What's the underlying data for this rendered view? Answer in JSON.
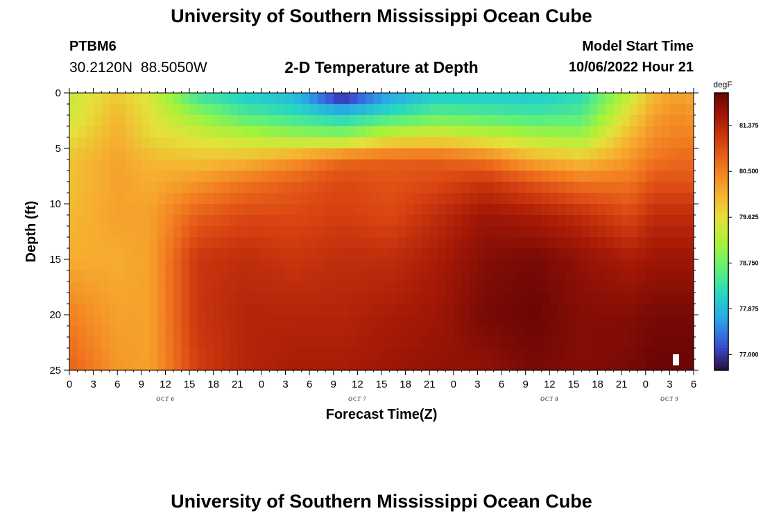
{
  "header": {
    "title": "University of Southern Mississippi Ocean Cube",
    "station": "PTBM6",
    "coords": "30.2120N  88.5050W",
    "subtitle": "2-D Temperature at Depth",
    "model_start_label": "Model Start Time",
    "model_start_value": "10/06/2022 Hour 21"
  },
  "footer": {
    "title": "University of Southern Mississippi Ocean Cube"
  },
  "colors": {
    "ramp": [
      "#2a0f3f",
      "#3b4fd8",
      "#2aa4e8",
      "#26d6c4",
      "#5ff07a",
      "#a6f23a",
      "#e3e23a",
      "#f6b030",
      "#f27a20",
      "#d94412",
      "#a81a06",
      "#6b0505"
    ]
  },
  "chart_data": {
    "type": "heatmap",
    "title": "2-D Temperature at Depth",
    "xlabel": "Forecast Time(Z)",
    "ylabel": "Depth (ft)",
    "x_tick_labels": [
      "0",
      "3",
      "6",
      "9",
      "12",
      "15",
      "18",
      "21",
      "0",
      "3",
      "6",
      "9",
      "12",
      "15",
      "18",
      "21",
      "0",
      "3",
      "6",
      "9",
      "12",
      "15",
      "18",
      "21",
      "0",
      "3",
      "6"
    ],
    "x_range_hours": [
      0,
      78
    ],
    "day_labels": [
      {
        "label": "OCT 6",
        "hour": 12
      },
      {
        "label": "OCT 7",
        "hour": 36
      },
      {
        "label": "OCT 8",
        "hour": 60
      },
      {
        "label": "OCT 9",
        "hour": 75
      }
    ],
    "y_ticks": [
      0,
      5,
      10,
      15,
      20,
      25
    ],
    "y_range_ft": [
      0,
      25
    ],
    "colorbar": {
      "unit": "degF",
      "min": 76.7,
      "max": 82.0,
      "labels": [
        "81.375",
        "80.500",
        "79.625",
        "78.750",
        "77.875",
        "77.000"
      ]
    },
    "profile_times_hours": [
      0,
      6,
      10,
      16,
      22,
      28,
      34,
      40,
      46,
      52,
      58,
      64,
      70,
      73,
      76,
      78
    ],
    "profile_depths_ft": [
      0,
      2,
      4,
      6,
      8,
      11,
      15,
      20,
      25
    ],
    "temperature_degF": [
      [
        79.4,
        79.4,
        79.6,
        79.9,
        79.9,
        80.0,
        80.1,
        80.5,
        80.8
      ],
      [
        79.8,
        80.0,
        80.1,
        80.2,
        80.2,
        80.2,
        80.1,
        80.2,
        80.3
      ],
      [
        79.5,
        79.6,
        79.7,
        80.0,
        80.1,
        80.2,
        80.2,
        80.2,
        80.2
      ],
      [
        78.3,
        79.0,
        79.5,
        79.9,
        80.3,
        80.8,
        81.2,
        81.2,
        81.1
      ],
      [
        78.0,
        78.5,
        79.3,
        80.0,
        80.6,
        81.0,
        81.3,
        81.4,
        81.4
      ],
      [
        77.8,
        78.3,
        79.1,
        80.3,
        80.8,
        81.0,
        81.2,
        81.4,
        81.5
      ],
      [
        76.7,
        78.0,
        79.0,
        80.7,
        81.0,
        81.1,
        81.3,
        81.4,
        81.5
      ],
      [
        77.6,
        78.3,
        79.5,
        80.8,
        80.9,
        81.0,
        81.3,
        81.5,
        81.6
      ],
      [
        78.0,
        78.6,
        79.6,
        80.8,
        81.0,
        81.3,
        81.5,
        81.6,
        81.7
      ],
      [
        78.0,
        78.5,
        79.4,
        80.6,
        81.2,
        81.6,
        81.8,
        81.9,
        81.7
      ],
      [
        78.0,
        78.4,
        79.2,
        80.1,
        80.9,
        81.5,
        81.9,
        82.0,
        81.9
      ],
      [
        78.2,
        78.5,
        79.1,
        79.9,
        80.6,
        81.3,
        81.7,
        81.8,
        81.8
      ],
      [
        79.3,
        79.7,
        80.0,
        80.3,
        80.6,
        81.0,
        81.5,
        81.8,
        81.9
      ],
      [
        80.0,
        80.2,
        80.4,
        80.6,
        80.9,
        81.3,
        81.6,
        81.9,
        82.0
      ],
      [
        80.2,
        80.4,
        80.5,
        80.7,
        80.9,
        81.3,
        81.6,
        81.9,
        82.0
      ],
      [
        80.1,
        80.3,
        80.5,
        80.7,
        80.9,
        81.3,
        81.6,
        81.9,
        82.0
      ]
    ]
  }
}
